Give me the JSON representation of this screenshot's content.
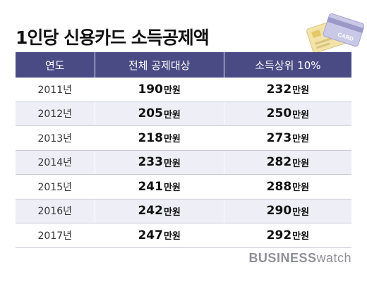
{
  "title": "1인당 신용카드 소득공제액",
  "header": {
    "col1": "연도",
    "col2": "전체 공제대상",
    "col3": "소득상위 10%"
  },
  "rows": [
    {
      "year": "2011년",
      "all": "190",
      "top10": "232"
    },
    {
      "year": "2012년",
      "all": "205",
      "top10": "250"
    },
    {
      "year": "2013년",
      "all": "218",
      "top10": "273"
    },
    {
      "year": "2014년",
      "all": "233",
      "top10": "282"
    },
    {
      "year": "2015년",
      "all": "241",
      "top10": "288"
    },
    {
      "year": "2016년",
      "all": "242",
      "top10": "290"
    },
    {
      "year": "2017년",
      "all": "247",
      "top10": "292"
    }
  ],
  "unit": "만원",
  "card_text": "CARD",
  "brand": {
    "part1": "BUSINESS",
    "part2": "watch"
  }
}
